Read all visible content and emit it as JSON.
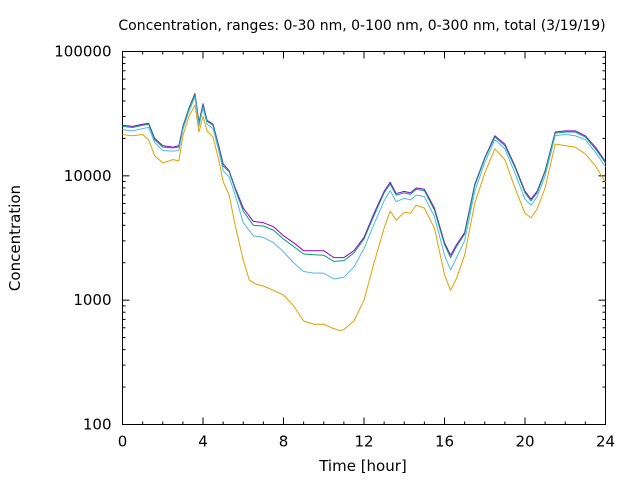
{
  "chart_data": {
    "type": "line",
    "title": "Concentration, ranges: 0-30 nm, 0-100 nm, 0-300 nm, total (3/19/19)",
    "xlabel": "Time [hour]",
    "ylabel": "Concentration",
    "xlim": [
      0,
      24
    ],
    "ylim": [
      100,
      100000
    ],
    "yscale": "log",
    "grid": false,
    "legend": "none",
    "x_ticks": [
      0,
      4,
      8,
      12,
      16,
      20,
      24
    ],
    "y_ticks": [
      100,
      1000,
      10000,
      100000
    ],
    "x_tick_labels": [
      "0",
      "4",
      "8",
      "12",
      "16",
      "20",
      "24"
    ],
    "y_tick_labels": [
      "100",
      "1000",
      "10000",
      "100000"
    ],
    "series": [
      {
        "color": "#9400d3",
        "points": [
          [
            0,
            25500
          ],
          [
            0.5,
            25000
          ],
          [
            1,
            26000
          ],
          [
            1.3,
            26500
          ],
          [
            1.6,
            20000
          ],
          [
            2,
            17500
          ],
          [
            2.5,
            17000
          ],
          [
            2.8,
            17500
          ],
          [
            3,
            25000
          ],
          [
            3.3,
            35000
          ],
          [
            3.6,
            46000
          ],
          [
            3.8,
            27000
          ],
          [
            4,
            38000
          ],
          [
            4.2,
            28000
          ],
          [
            4.5,
            26000
          ],
          [
            4.8,
            17000
          ],
          [
            5,
            12500
          ],
          [
            5.3,
            11000
          ],
          [
            5.6,
            8000
          ],
          [
            6,
            5500
          ],
          [
            6.5,
            4300
          ],
          [
            7,
            4200
          ],
          [
            7.5,
            3900
          ],
          [
            8,
            3300
          ],
          [
            8.5,
            2900
          ],
          [
            9,
            2500
          ],
          [
            9.5,
            2500
          ],
          [
            10,
            2500
          ],
          [
            10.5,
            2200
          ],
          [
            11,
            2200
          ],
          [
            11.5,
            2500
          ],
          [
            12,
            3200
          ],
          [
            12.5,
            5000
          ],
          [
            13,
            7500
          ],
          [
            13.3,
            8900
          ],
          [
            13.6,
            7200
          ],
          [
            14,
            7500
          ],
          [
            14.3,
            7300
          ],
          [
            14.6,
            8000
          ],
          [
            15,
            7800
          ],
          [
            15.5,
            5500
          ],
          [
            16,
            2900
          ],
          [
            16.3,
            2300
          ],
          [
            16.6,
            2800
          ],
          [
            17,
            3500
          ],
          [
            17.5,
            8500
          ],
          [
            18,
            14000
          ],
          [
            18.5,
            21000
          ],
          [
            19,
            18000
          ],
          [
            19.5,
            12000
          ],
          [
            20,
            7500
          ],
          [
            20.3,
            6500
          ],
          [
            20.6,
            7500
          ],
          [
            21,
            11000
          ],
          [
            21.5,
            22500
          ],
          [
            22,
            23000
          ],
          [
            22.5,
            23000
          ],
          [
            23,
            21000
          ],
          [
            23.5,
            17000
          ],
          [
            24,
            13000
          ]
        ]
      },
      {
        "color": "#009e73",
        "points": [
          [
            0,
            25000
          ],
          [
            0.5,
            24500
          ],
          [
            1,
            25500
          ],
          [
            1.3,
            26000
          ],
          [
            1.6,
            19500
          ],
          [
            2,
            17000
          ],
          [
            2.5,
            16800
          ],
          [
            2.8,
            17000
          ],
          [
            3,
            24500
          ],
          [
            3.3,
            34500
          ],
          [
            3.6,
            45000
          ],
          [
            3.8,
            26500
          ],
          [
            4,
            37000
          ],
          [
            4.2,
            27500
          ],
          [
            4.5,
            25500
          ],
          [
            4.8,
            16500
          ],
          [
            5,
            12000
          ],
          [
            5.3,
            10800
          ],
          [
            5.6,
            7800
          ],
          [
            6,
            5200
          ],
          [
            6.5,
            4000
          ],
          [
            7,
            3950
          ],
          [
            7.5,
            3650
          ],
          [
            8,
            3100
          ],
          [
            8.5,
            2700
          ],
          [
            9,
            2350
          ],
          [
            9.5,
            2320
          ],
          [
            10,
            2300
          ],
          [
            10.5,
            2050
          ],
          [
            11,
            2080
          ],
          [
            11.5,
            2400
          ],
          [
            12,
            3100
          ],
          [
            12.5,
            4800
          ],
          [
            13,
            7300
          ],
          [
            13.3,
            8600
          ],
          [
            13.6,
            7000
          ],
          [
            14,
            7300
          ],
          [
            14.3,
            7100
          ],
          [
            14.6,
            7800
          ],
          [
            15,
            7600
          ],
          [
            15.5,
            5300
          ],
          [
            16,
            2800
          ],
          [
            16.3,
            2200
          ],
          [
            16.6,
            2700
          ],
          [
            17,
            3400
          ],
          [
            17.5,
            8300
          ],
          [
            18,
            13800
          ],
          [
            18.5,
            20500
          ],
          [
            19,
            17500
          ],
          [
            19.5,
            11700
          ],
          [
            20,
            7300
          ],
          [
            20.3,
            6300
          ],
          [
            20.6,
            7300
          ],
          [
            21,
            10800
          ],
          [
            21.5,
            22000
          ],
          [
            22,
            22500
          ],
          [
            22.5,
            22500
          ],
          [
            23,
            20500
          ],
          [
            23.5,
            16500
          ],
          [
            24,
            12700
          ]
        ]
      },
      {
        "color": "#56b4e9",
        "points": [
          [
            0,
            23500
          ],
          [
            0.5,
            23000
          ],
          [
            1,
            24000
          ],
          [
            1.3,
            24500
          ],
          [
            1.6,
            18500
          ],
          [
            2,
            16000
          ],
          [
            2.5,
            15800
          ],
          [
            2.8,
            16000
          ],
          [
            3,
            23500
          ],
          [
            3.3,
            33000
          ],
          [
            3.6,
            43000
          ],
          [
            3.8,
            25000
          ],
          [
            4,
            35000
          ],
          [
            4.2,
            26000
          ],
          [
            4.5,
            24000
          ],
          [
            4.8,
            15500
          ],
          [
            5,
            11000
          ],
          [
            5.3,
            9800
          ],
          [
            5.6,
            7000
          ],
          [
            6,
            4200
          ],
          [
            6.5,
            3300
          ],
          [
            7,
            3200
          ],
          [
            7.5,
            2900
          ],
          [
            8,
            2450
          ],
          [
            8.5,
            2000
          ],
          [
            9,
            1700
          ],
          [
            9.5,
            1650
          ],
          [
            10,
            1650
          ],
          [
            10.5,
            1480
          ],
          [
            11,
            1530
          ],
          [
            11.5,
            1850
          ],
          [
            12,
            2600
          ],
          [
            12.5,
            4100
          ],
          [
            13,
            6300
          ],
          [
            13.3,
            7600
          ],
          [
            13.6,
            6200
          ],
          [
            14,
            6600
          ],
          [
            14.3,
            6400
          ],
          [
            14.6,
            7000
          ],
          [
            15,
            6800
          ],
          [
            15.5,
            4700
          ],
          [
            16,
            2300
          ],
          [
            16.3,
            1750
          ],
          [
            16.6,
            2200
          ],
          [
            17,
            3000
          ],
          [
            17.5,
            7500
          ],
          [
            18,
            12800
          ],
          [
            18.5,
            19500
          ],
          [
            19,
            16500
          ],
          [
            19.5,
            10500
          ],
          [
            20,
            6500
          ],
          [
            20.3,
            5800
          ],
          [
            20.6,
            6800
          ],
          [
            21,
            10000
          ],
          [
            21.5,
            21000
          ],
          [
            22,
            21500
          ],
          [
            22.5,
            21000
          ],
          [
            23,
            19500
          ],
          [
            23.5,
            15500
          ],
          [
            24,
            11800
          ]
        ]
      },
      {
        "color": "#e69f00",
        "points": [
          [
            0,
            21500
          ],
          [
            0.5,
            21000
          ],
          [
            1,
            21500
          ],
          [
            1.3,
            19500
          ],
          [
            1.6,
            14500
          ],
          [
            2,
            12700
          ],
          [
            2.5,
            13500
          ],
          [
            2.8,
            13200
          ],
          [
            3,
            21000
          ],
          [
            3.3,
            30000
          ],
          [
            3.6,
            37000
          ],
          [
            3.8,
            22500
          ],
          [
            4,
            30000
          ],
          [
            4.2,
            23000
          ],
          [
            4.5,
            20500
          ],
          [
            4.8,
            13000
          ],
          [
            5,
            9000
          ],
          [
            5.3,
            7000
          ],
          [
            5.6,
            4000
          ],
          [
            6,
            2100
          ],
          [
            6.3,
            1450
          ],
          [
            6.6,
            1350
          ],
          [
            7,
            1300
          ],
          [
            7.5,
            1200
          ],
          [
            8,
            1100
          ],
          [
            8.5,
            900
          ],
          [
            9,
            680
          ],
          [
            9.5,
            640
          ],
          [
            10,
            640
          ],
          [
            10.5,
            590
          ],
          [
            10.8,
            570
          ],
          [
            11,
            580
          ],
          [
            11.5,
            680
          ],
          [
            12,
            1000
          ],
          [
            12.5,
            2000
          ],
          [
            13,
            3800
          ],
          [
            13.3,
            5200
          ],
          [
            13.6,
            4400
          ],
          [
            14,
            5100
          ],
          [
            14.3,
            5000
          ],
          [
            14.6,
            5800
          ],
          [
            15,
            5500
          ],
          [
            15.5,
            3800
          ],
          [
            16,
            1600
          ],
          [
            16.3,
            1200
          ],
          [
            16.6,
            1500
          ],
          [
            17,
            2300
          ],
          [
            17.5,
            6000
          ],
          [
            18,
            10500
          ],
          [
            18.5,
            16500
          ],
          [
            19,
            13500
          ],
          [
            19.5,
            8000
          ],
          [
            20,
            5000
          ],
          [
            20.3,
            4600
          ],
          [
            20.6,
            5400
          ],
          [
            21,
            8000
          ],
          [
            21.5,
            18000
          ],
          [
            22,
            17500
          ],
          [
            22.5,
            17000
          ],
          [
            23,
            15000
          ],
          [
            23.5,
            12000
          ],
          [
            24,
            8900
          ]
        ]
      }
    ]
  }
}
